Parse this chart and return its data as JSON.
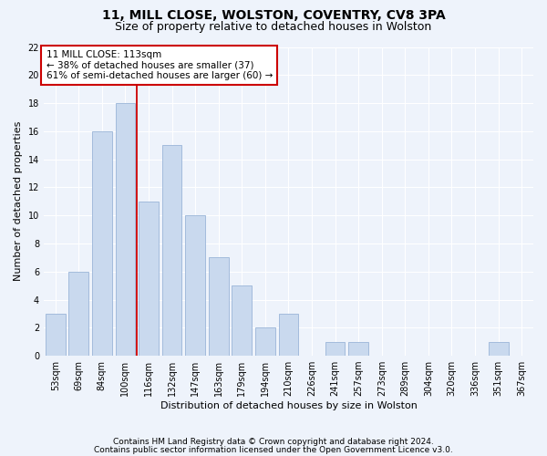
{
  "title1": "11, MILL CLOSE, WOLSTON, COVENTRY, CV8 3PA",
  "title2": "Size of property relative to detached houses in Wolston",
  "xlabel": "Distribution of detached houses by size in Wolston",
  "ylabel": "Number of detached properties",
  "categories": [
    "53sqm",
    "69sqm",
    "84sqm",
    "100sqm",
    "116sqm",
    "132sqm",
    "147sqm",
    "163sqm",
    "179sqm",
    "194sqm",
    "210sqm",
    "226sqm",
    "241sqm",
    "257sqm",
    "273sqm",
    "289sqm",
    "304sqm",
    "320sqm",
    "336sqm",
    "351sqm",
    "367sqm"
  ],
  "values": [
    3,
    6,
    16,
    18,
    11,
    15,
    10,
    7,
    5,
    2,
    3,
    0,
    1,
    1,
    0,
    0,
    0,
    0,
    0,
    1,
    0
  ],
  "bar_color": "#c9d9ee",
  "bar_edge_color": "#9ab5d8",
  "annotation_box_text": "11 MILL CLOSE: 113sqm\n← 38% of detached houses are smaller (37)\n61% of semi-detached houses are larger (60) →",
  "annotation_box_color": "#ffffff",
  "annotation_box_edge_color": "#cc0000",
  "vline_color": "#cc0000",
  "vline_x_index": 3.5,
  "ylim": [
    0,
    22
  ],
  "yticks": [
    0,
    2,
    4,
    6,
    8,
    10,
    12,
    14,
    16,
    18,
    20,
    22
  ],
  "footnote1": "Contains HM Land Registry data © Crown copyright and database right 2024.",
  "footnote2": "Contains public sector information licensed under the Open Government Licence v3.0.",
  "background_color": "#eef3fb",
  "plot_bg_color": "#eef3fb",
  "grid_color": "#ffffff",
  "title1_fontsize": 10,
  "title2_fontsize": 9,
  "xlabel_fontsize": 8,
  "ylabel_fontsize": 8,
  "tick_fontsize": 7,
  "annotation_fontsize": 7.5,
  "footnote_fontsize": 6.5
}
